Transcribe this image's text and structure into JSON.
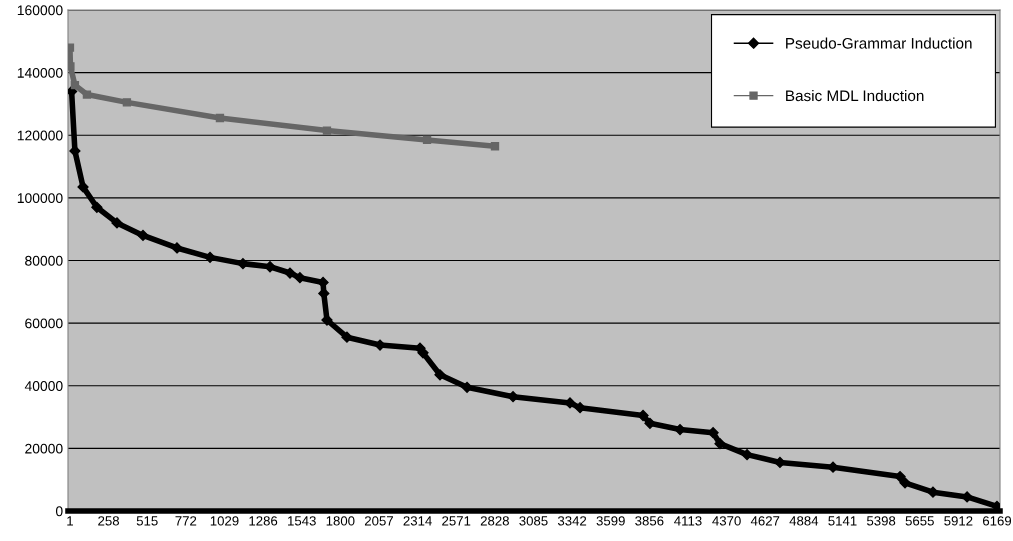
{
  "chart_data": {
    "type": "line",
    "xlim": [
      -12,
      6189
    ],
    "xticks": [
      1,
      258,
      515,
      772,
      1029,
      1286,
      1543,
      1800,
      2057,
      2314,
      2571,
      2828,
      3085,
      3342,
      3599,
      3856,
      4113,
      4370,
      4627,
      4884,
      5141,
      5398,
      5655,
      5912,
      6169
    ],
    "ylim": [
      0,
      160000
    ],
    "yticks": [
      0,
      20000,
      40000,
      60000,
      80000,
      100000,
      120000,
      140000,
      160000
    ],
    "grid": "y",
    "legend": "top right",
    "series": [
      {
        "name": "Pseudo-Grammar Induction",
        "color": "#000000",
        "marker": "diamond",
        "x": [
          12,
          34,
          88,
          180,
          314,
          487,
          713,
          933,
          1152,
          1332,
          1465,
          1531,
          1685,
          1690,
          1711,
          1844,
          2064,
          2330,
          2350,
          2463,
          2643,
          2949,
          3328,
          3395,
          3814,
          3860,
          4060,
          4280,
          4326,
          4506,
          4725,
          5078,
          5524,
          5557,
          5743,
          5970,
          6169
        ],
        "values": [
          134000,
          115000,
          103500,
          97000,
          92000,
          88000,
          84000,
          81000,
          79000,
          78000,
          76000,
          74500,
          73000,
          69500,
          61000,
          55500,
          53000,
          52000,
          50500,
          43500,
          39500,
          36500,
          34500,
          33000,
          30500,
          28000,
          26000,
          25000,
          21500,
          18000,
          15500,
          14000,
          11000,
          9000,
          6000,
          4500,
          1500
        ]
      },
      {
        "name": "Basic MDL Induction",
        "color": "#666666",
        "marker": "square",
        "x": [
          1,
          4,
          34,
          114,
          380,
          999,
          1711,
          2377,
          2829
        ],
        "values": [
          148000,
          142000,
          136000,
          133000,
          130500,
          125500,
          121500,
          118500,
          116500
        ]
      }
    ]
  }
}
